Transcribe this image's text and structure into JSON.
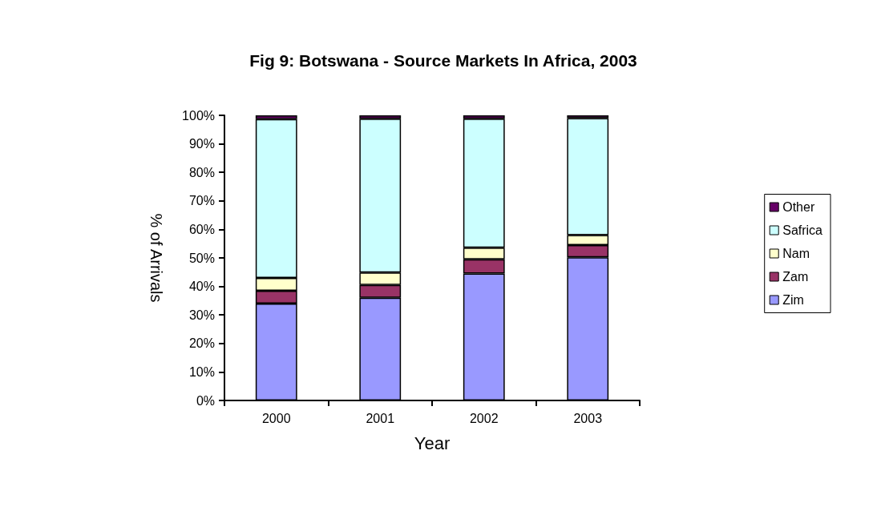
{
  "chart_data": {
    "type": "bar",
    "title": "Fig 9: Botswana - Source Markets In Africa, 2003",
    "xlabel": "Year",
    "ylabel": "% of Arrivals",
    "categories": [
      "2000",
      "2001",
      "2002",
      "2003"
    ],
    "stacked": true,
    "series": [
      {
        "name": "Zim",
        "color": "#9999ff",
        "values": [
          34,
          36,
          44.5,
          50.2
        ]
      },
      {
        "name": "Zam",
        "color": "#993366",
        "values": [
          4.5,
          4.5,
          5,
          4.3
        ]
      },
      {
        "name": "Nam",
        "color": "#ffffcc",
        "values": [
          4.5,
          4.4,
          4.1,
          3.5
        ]
      },
      {
        "name": "Safrica",
        "color": "#ccffff",
        "values": [
          55.7,
          53.9,
          45.2,
          41
        ]
      },
      {
        "name": "Other",
        "color": "#660066",
        "values": [
          1.3,
          1.2,
          1.2,
          1
        ]
      }
    ],
    "ylim": [
      0,
      100
    ],
    "yticks": [
      {
        "value": 0,
        "label": "0%"
      },
      {
        "value": 10,
        "label": "10%"
      },
      {
        "value": 20,
        "label": "20%"
      },
      {
        "value": 30,
        "label": "30%"
      },
      {
        "value": 40,
        "label": "40%"
      },
      {
        "value": 50,
        "label": "50%"
      },
      {
        "value": 60,
        "label": "60%"
      },
      {
        "value": 70,
        "label": "70%"
      },
      {
        "value": 80,
        "label": "80%"
      },
      {
        "value": 90,
        "label": "90%"
      },
      {
        "value": 100,
        "label": "100%"
      }
    ],
    "grid": false,
    "legend": "right"
  }
}
